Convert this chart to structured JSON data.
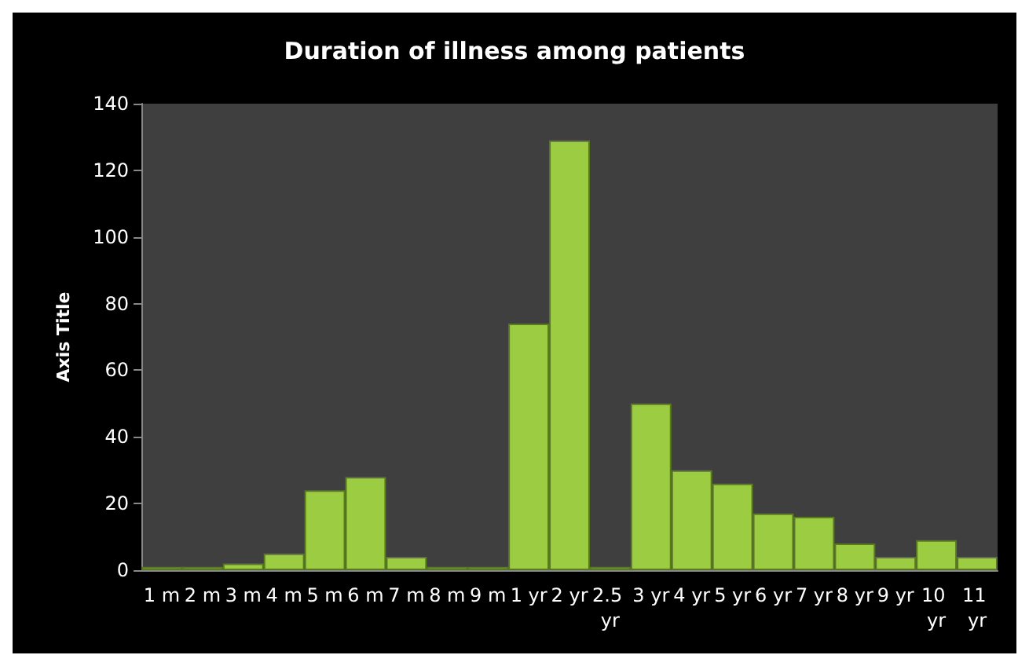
{
  "chart_data": {
    "type": "bar",
    "title": "Duration of illness among patients",
    "ylabel": "Axis Title",
    "categories": [
      "1 m",
      "2 m",
      "3 m",
      "4 m",
      "5 m",
      "6 m",
      "7 m",
      "8 m",
      "9 m",
      "1 yr",
      "2 yr",
      "2.5 yr",
      "3 yr",
      "4 yr",
      "5 yr",
      "6 yr",
      "7 yr",
      "8 yr",
      "9 yr",
      "10 yr",
      "11 yr"
    ],
    "values": [
      1,
      1,
      2,
      5,
      24,
      28,
      4,
      1,
      1,
      74,
      129,
      1,
      50,
      30,
      26,
      17,
      16,
      8,
      4,
      9,
      4
    ],
    "color": "#9ccc42",
    "ylim": [
      0,
      140
    ],
    "yticks": [
      0,
      20,
      40,
      60,
      80,
      100,
      120,
      140
    ],
    "grid": false
  }
}
